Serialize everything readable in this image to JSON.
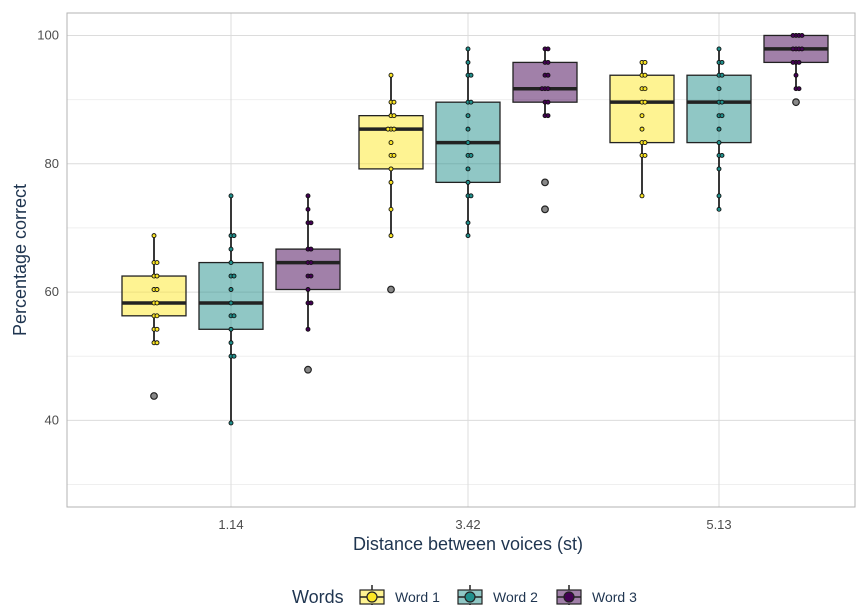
{
  "chart_data": {
    "type": "box",
    "xlabel": "Distance between voices (st)",
    "ylabel": "Percentage correct",
    "ylim": [
      26.5,
      103.5
    ],
    "yticks": [
      40,
      60,
      80,
      100
    ],
    "categories": [
      "1.14",
      "3.42",
      "5.13"
    ],
    "grid": true,
    "legend": {
      "title": "Words",
      "position": "bottom"
    },
    "series": [
      {
        "name": "Word 1",
        "color": "#fde725",
        "boxes": [
          {
            "q1": 56.3,
            "median": 58.3,
            "q3": 62.5,
            "whisker_low": 52.1,
            "whisker_high": 68.8,
            "outliers": [
              43.8
            ],
            "points": [
              68.8,
              64.6,
              64.6,
              62.5,
              62.5,
              60.4,
              60.4,
              58.3,
              58.3,
              56.3,
              56.3,
              54.2,
              54.2,
              52.1,
              52.1,
              43.8
            ]
          },
          {
            "q1": 79.2,
            "median": 85.4,
            "q3": 87.5,
            "whisker_low": 68.8,
            "whisker_high": 93.8,
            "outliers": [
              60.4
            ],
            "points": [
              93.8,
              89.6,
              89.6,
              87.5,
              87.5,
              85.4,
              85.4,
              85.4,
              83.3,
              81.3,
              81.3,
              79.2,
              77.1,
              72.9,
              68.8,
              60.4
            ]
          },
          {
            "q1": 83.3,
            "median": 89.6,
            "q3": 93.8,
            "whisker_low": 75.0,
            "whisker_high": 95.8,
            "outliers": [],
            "points": [
              95.8,
              95.8,
              93.8,
              93.8,
              91.7,
              91.7,
              89.6,
              89.6,
              87.5,
              85.4,
              83.3,
              83.3,
              81.3,
              81.3,
              75.0
            ]
          }
        ]
      },
      {
        "name": "Word 2",
        "color": "#21908c",
        "boxes": [
          {
            "q1": 54.2,
            "median": 58.3,
            "q3": 64.6,
            "whisker_low": 39.6,
            "whisker_high": 75.0,
            "outliers": [],
            "points": [
              75.0,
              68.8,
              68.8,
              66.7,
              64.6,
              62.5,
              62.5,
              60.4,
              58.3,
              56.3,
              56.3,
              54.2,
              52.1,
              50.0,
              50.0,
              39.6
            ]
          },
          {
            "q1": 77.1,
            "median": 83.3,
            "q3": 89.6,
            "whisker_low": 68.8,
            "whisker_high": 97.9,
            "outliers": [],
            "points": [
              97.9,
              95.8,
              93.8,
              93.8,
              89.6,
              89.6,
              87.5,
              85.4,
              83.3,
              81.3,
              81.3,
              79.2,
              77.1,
              75.0,
              75.0,
              70.8,
              68.8
            ]
          },
          {
            "q1": 83.3,
            "median": 89.6,
            "q3": 93.8,
            "whisker_low": 72.9,
            "whisker_high": 97.9,
            "outliers": [],
            "points": [
              97.9,
              95.8,
              95.8,
              93.8,
              93.8,
              91.7,
              89.6,
              89.6,
              87.5,
              87.5,
              85.4,
              83.3,
              81.3,
              81.3,
              79.2,
              75.0,
              72.9
            ]
          }
        ]
      },
      {
        "name": "Word 3",
        "color": "#440154",
        "boxes": [
          {
            "q1": 60.4,
            "median": 64.6,
            "q3": 66.7,
            "whisker_low": 54.2,
            "whisker_high": 75.0,
            "outliers": [
              47.9
            ],
            "points": [
              75.0,
              72.9,
              70.8,
              70.8,
              66.7,
              66.7,
              64.6,
              64.6,
              62.5,
              62.5,
              60.4,
              58.3,
              58.3,
              54.2,
              47.9
            ]
          },
          {
            "q1": 89.6,
            "median": 91.7,
            "q3": 95.8,
            "whisker_low": 87.5,
            "whisker_high": 97.9,
            "outliers": [
              77.1,
              72.9
            ],
            "points": [
              97.9,
              97.9,
              95.8,
              95.8,
              93.8,
              93.8,
              91.7,
              91.7,
              91.7,
              89.6,
              89.6,
              87.5,
              87.5,
              77.1,
              72.9
            ]
          },
          {
            "q1": 95.8,
            "median": 97.9,
            "q3": 100.0,
            "whisker_low": 91.7,
            "whisker_high": 100.0,
            "outliers": [
              89.6
            ],
            "points": [
              100.0,
              100.0,
              100.0,
              100.0,
              97.9,
              97.9,
              97.9,
              97.9,
              95.8,
              95.8,
              95.8,
              93.8,
              91.7,
              91.7,
              89.6
            ]
          }
        ]
      }
    ]
  }
}
